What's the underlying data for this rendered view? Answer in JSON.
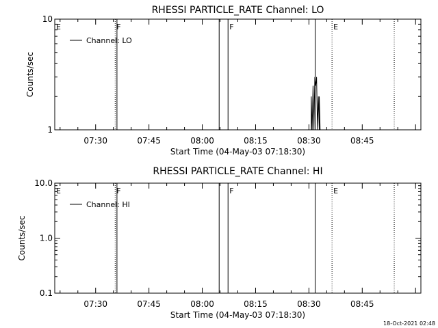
{
  "footer": {
    "timestamp": "18-Oct-2021 02:48"
  },
  "chart_data": [
    {
      "type": "line",
      "title": "RHESSI PARTICLE_RATE Channel: LO",
      "xlabel": "Start Time (04-May-03 07:18:30)",
      "ylabel": "Counts/sec",
      "yscale": "log",
      "xlim": [
        "07:18:30",
        "09:01:30"
      ],
      "ylim": [
        1,
        10
      ],
      "xticks": [
        "07:30",
        "07:45",
        "08:00",
        "08:15",
        "08:30",
        "08:45"
      ],
      "yticks": [
        {
          "value": 1,
          "label": "1"
        },
        {
          "value": 10,
          "label": "10"
        }
      ],
      "legend": {
        "position": "top-left",
        "entries": [
          "Channel: LO"
        ]
      },
      "series": [
        {
          "name": "Channel: LO",
          "points": [
            [
              "08:30:40",
              1
            ],
            [
              "08:30:40",
              2
            ],
            [
              "08:30:55",
              1
            ],
            [
              "08:31:10",
              2.5
            ],
            [
              "08:31:25",
              1
            ],
            [
              "08:31:40",
              3
            ],
            [
              "08:31:55",
              2.5
            ],
            [
              "08:32:10",
              3
            ],
            [
              "08:32:25",
              1
            ],
            [
              "08:32:40",
              2
            ],
            [
              "08:32:55",
              1
            ],
            [
              "08:32:55",
              2
            ],
            [
              "08:33:10",
              1
            ]
          ]
        }
      ],
      "solid_lines": [
        "07:36:00",
        "08:04:45",
        "08:07:15",
        "08:31:45"
      ],
      "flags": [
        {
          "label": "E",
          "time": "07:18:30",
          "style": "dotted"
        },
        {
          "label": "F",
          "time": "07:35:30",
          "style": "dotted"
        },
        {
          "label": "F",
          "time": "08:07:15",
          "style": "none"
        },
        {
          "label": "E",
          "time": "08:36:30",
          "style": "dotted"
        },
        {
          "label": "",
          "time": "08:54:00",
          "style": "dotted"
        }
      ]
    },
    {
      "type": "line",
      "title": "RHESSI PARTICLE_RATE Channel: HI",
      "xlabel": "Start Time (04-May-03 07:18:30)",
      "ylabel": "Counts/sec",
      "yscale": "log",
      "xlim": [
        "07:18:30",
        "09:01:30"
      ],
      "ylim": [
        0.1,
        10
      ],
      "xticks": [
        "07:30",
        "07:45",
        "08:00",
        "08:15",
        "08:30",
        "08:45"
      ],
      "yticks": [
        {
          "value": 0.1,
          "label": "0.1"
        },
        {
          "value": 1,
          "label": "1.0"
        },
        {
          "value": 10,
          "label": "10.0"
        }
      ],
      "legend": {
        "position": "top-left",
        "entries": [
          "Channel: HI"
        ]
      },
      "series": [
        {
          "name": "Channel: HI",
          "points": []
        }
      ],
      "solid_lines": [
        "07:36:00",
        "08:04:45",
        "08:07:15",
        "08:31:45"
      ],
      "flags": [
        {
          "label": "E",
          "time": "07:18:30",
          "style": "dotted"
        },
        {
          "label": "F",
          "time": "07:35:30",
          "style": "dotted"
        },
        {
          "label": "F",
          "time": "08:07:15",
          "style": "none"
        },
        {
          "label": "E",
          "time": "08:36:30",
          "style": "dotted"
        },
        {
          "label": "",
          "time": "08:54:00",
          "style": "dotted"
        }
      ]
    }
  ]
}
